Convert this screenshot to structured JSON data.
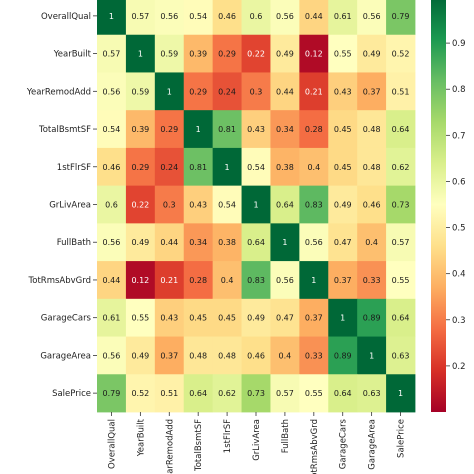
{
  "chart_data": {
    "type": "heatmap",
    "title": "",
    "xlabel": "",
    "ylabel": "",
    "variables": [
      "OverallQual",
      "YearBuilt",
      "YearRemodAdd",
      "TotalBsmtSF",
      "1stFlrSF",
      "GrLivArea",
      "FullBath",
      "TotRmsAbvGrd",
      "GarageCars",
      "GarageArea",
      "SalePrice"
    ],
    "values": [
      [
        1,
        0.57,
        0.56,
        0.54,
        0.46,
        0.6,
        0.56,
        0.44,
        0.61,
        0.56,
        0.79
      ],
      [
        0.57,
        1,
        0.59,
        0.39,
        0.29,
        0.22,
        0.49,
        0.12,
        0.55,
        0.49,
        0.52
      ],
      [
        0.56,
        0.59,
        1,
        0.29,
        0.24,
        0.3,
        0.44,
        0.21,
        0.43,
        0.37,
        0.51
      ],
      [
        0.54,
        0.39,
        0.29,
        1,
        0.81,
        0.43,
        0.34,
        0.28,
        0.45,
        0.48,
        0.64
      ],
      [
        0.46,
        0.29,
        0.24,
        0.81,
        1,
        0.54,
        0.38,
        0.4,
        0.45,
        0.48,
        0.62
      ],
      [
        0.6,
        0.22,
        0.3,
        0.43,
        0.54,
        1,
        0.64,
        0.83,
        0.49,
        0.46,
        0.73
      ],
      [
        0.56,
        0.49,
        0.44,
        0.34,
        0.38,
        0.64,
        1,
        0.56,
        0.47,
        0.4,
        0.57
      ],
      [
        0.44,
        0.12,
        0.21,
        0.28,
        0.4,
        0.83,
        0.56,
        1,
        0.37,
        0.33,
        0.55
      ],
      [
        0.61,
        0.55,
        0.43,
        0.45,
        0.45,
        0.49,
        0.47,
        0.37,
        1,
        0.89,
        0.64
      ],
      [
        0.56,
        0.49,
        0.37,
        0.48,
        0.48,
        0.46,
        0.4,
        0.33,
        0.89,
        1,
        0.63
      ],
      [
        0.79,
        0.52,
        0.51,
        0.64,
        0.62,
        0.73,
        0.57,
        0.55,
        0.64,
        0.63,
        1
      ]
    ],
    "colorscale": "RdYlGn",
    "vmin": 0.1,
    "vmax": 1.0,
    "colorbar_ticks": [
      "0.2",
      "0.3",
      "0.4",
      "0.5",
      "0.6",
      "0.7",
      "0.8",
      "0.9"
    ],
    "grid": false,
    "legend": "colorbar-right"
  }
}
